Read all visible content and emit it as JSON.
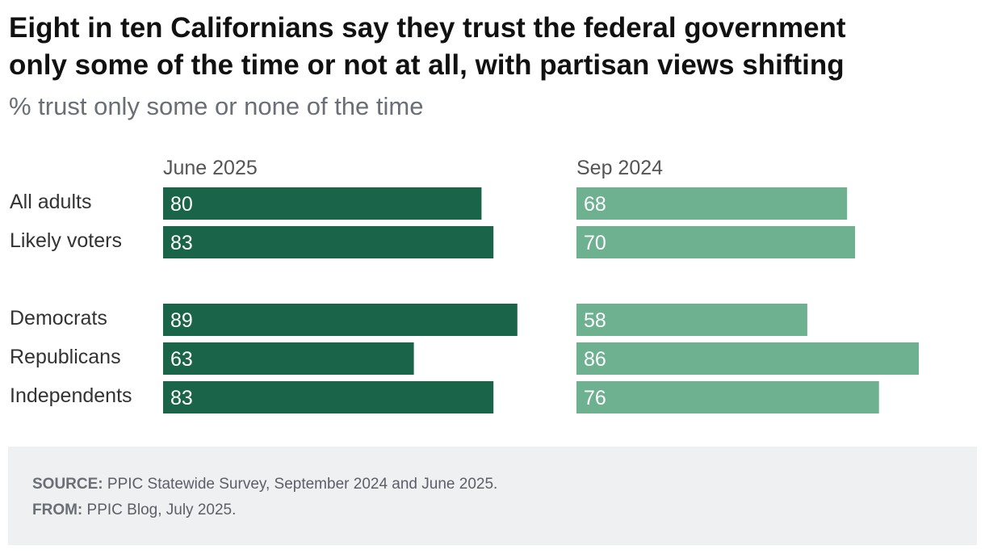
{
  "title_line1": "Eight in ten Californians say they trust the federal government",
  "title_line2": "only some of the time or not at all, with partisan views shifting",
  "subtitle": "% trust only some or none of the time",
  "colors": {
    "june_2025": "#1a644a",
    "sep_2024": "#6db190"
  },
  "chart_data": {
    "type": "bar",
    "orientation": "horizontal",
    "categories": [
      "All adults",
      "Likely voters",
      "Democrats",
      "Republicans",
      "Independents"
    ],
    "series": [
      {
        "name": "June 2025",
        "values": [
          80,
          83,
          89,
          63,
          83
        ]
      },
      {
        "name": "Sep 2024",
        "values": [
          68,
          70,
          58,
          86,
          76
        ]
      }
    ],
    "xlim": [
      0,
      100
    ],
    "grid": false
  },
  "footer": {
    "source_label": "SOURCE:",
    "source_text": "PPIC Statewide Survey, September 2024 and June 2025.",
    "from_label": "FROM:",
    "from_text": "PPIC Blog, July 2025."
  }
}
